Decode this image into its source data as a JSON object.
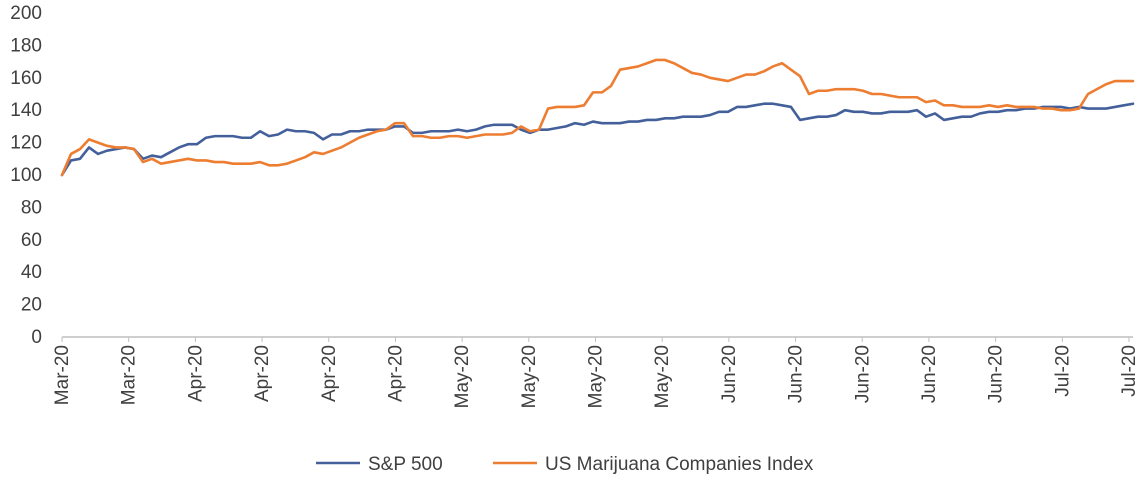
{
  "chart_data": {
    "type": "line",
    "title": "",
    "xlabel": "",
    "ylabel": "",
    "ylim": [
      0,
      200
    ],
    "y_ticks": [
      0,
      20,
      40,
      60,
      80,
      100,
      120,
      140,
      160,
      180,
      200
    ],
    "x_tick_labels": [
      "Mar-20",
      "Mar-20",
      "Apr-20",
      "Apr-20",
      "Apr-20",
      "Apr-20",
      "May-20",
      "May-20",
      "May-20",
      "May-20",
      "Jun-20",
      "Jun-20",
      "Jun-20",
      "Jun-20",
      "Jun-20",
      "Jul-20",
      "Jul-20"
    ],
    "grid": false,
    "legend_position": "bottom",
    "colors": {
      "sp500": "#44609a",
      "marijuana": "#ed7d31",
      "axis": "#bfbfbf",
      "text": "#404040"
    },
    "series": [
      {
        "name": "S&P 500",
        "color": "#44609a",
        "values": [
          [
            0,
            100
          ],
          [
            1,
            109
          ],
          [
            2,
            110
          ],
          [
            3,
            117
          ],
          [
            4,
            113
          ],
          [
            5,
            115
          ],
          [
            6,
            116
          ],
          [
            7,
            117
          ],
          [
            8,
            116
          ],
          [
            9,
            110
          ],
          [
            10,
            112
          ],
          [
            11,
            111
          ],
          [
            12,
            114
          ],
          [
            13,
            117
          ],
          [
            14,
            119
          ],
          [
            15,
            119
          ],
          [
            16,
            123
          ],
          [
            17,
            124
          ],
          [
            18,
            124
          ],
          [
            19,
            124
          ],
          [
            20,
            123
          ],
          [
            21,
            123
          ],
          [
            22,
            127
          ],
          [
            23,
            124
          ],
          [
            24,
            125
          ],
          [
            25,
            128
          ],
          [
            26,
            127
          ],
          [
            27,
            127
          ],
          [
            28,
            126
          ],
          [
            29,
            122
          ],
          [
            30,
            125
          ],
          [
            31,
            125
          ],
          [
            32,
            127
          ],
          [
            33,
            127
          ],
          [
            34,
            128
          ],
          [
            35,
            128
          ],
          [
            36,
            128
          ],
          [
            37,
            130
          ],
          [
            38,
            130
          ],
          [
            39,
            126
          ],
          [
            40,
            126
          ],
          [
            41,
            127
          ],
          [
            42,
            127
          ],
          [
            43,
            127
          ],
          [
            44,
            128
          ],
          [
            45,
            127
          ],
          [
            46,
            128
          ],
          [
            47,
            130
          ],
          [
            48,
            131
          ],
          [
            49,
            131
          ],
          [
            50,
            131
          ],
          [
            51,
            128
          ],
          [
            52,
            126
          ],
          [
            53,
            128
          ],
          [
            54,
            128
          ],
          [
            55,
            129
          ],
          [
            56,
            130
          ],
          [
            57,
            132
          ],
          [
            58,
            131
          ],
          [
            59,
            133
          ],
          [
            60,
            132
          ],
          [
            61,
            132
          ],
          [
            62,
            132
          ],
          [
            63,
            133
          ],
          [
            64,
            133
          ],
          [
            65,
            134
          ],
          [
            66,
            134
          ],
          [
            67,
            135
          ],
          [
            68,
            135
          ],
          [
            69,
            136
          ],
          [
            70,
            136
          ],
          [
            71,
            136
          ],
          [
            72,
            137
          ],
          [
            73,
            139
          ],
          [
            74,
            139
          ],
          [
            75,
            142
          ],
          [
            76,
            142
          ],
          [
            77,
            143
          ],
          [
            78,
            144
          ],
          [
            79,
            144
          ],
          [
            80,
            143
          ],
          [
            81,
            142
          ],
          [
            82,
            134
          ],
          [
            83,
            135
          ],
          [
            84,
            136
          ],
          [
            85,
            136
          ],
          [
            86,
            137
          ],
          [
            87,
            140
          ],
          [
            88,
            139
          ],
          [
            89,
            139
          ],
          [
            90,
            138
          ],
          [
            91,
            138
          ],
          [
            92,
            139
          ],
          [
            93,
            139
          ],
          [
            94,
            139
          ],
          [
            95,
            140
          ],
          [
            96,
            136
          ],
          [
            97,
            138
          ],
          [
            98,
            134
          ],
          [
            99,
            135
          ],
          [
            100,
            136
          ],
          [
            101,
            136
          ],
          [
            102,
            138
          ],
          [
            103,
            139
          ],
          [
            104,
            139
          ],
          [
            105,
            140
          ],
          [
            106,
            140
          ],
          [
            107,
            141
          ],
          [
            108,
            141
          ],
          [
            109,
            142
          ],
          [
            110,
            142
          ],
          [
            111,
            142
          ],
          [
            112,
            141
          ],
          [
            113,
            142
          ],
          [
            114,
            141
          ],
          [
            115,
            141
          ],
          [
            116,
            141
          ],
          [
            117,
            142
          ],
          [
            118,
            143
          ],
          [
            119,
            144
          ]
        ]
      },
      {
        "name": "US Marijuana Companies Index",
        "color": "#ed7d31",
        "values": [
          [
            0,
            100
          ],
          [
            1,
            113
          ],
          [
            2,
            116
          ],
          [
            3,
            122
          ],
          [
            4,
            120
          ],
          [
            5,
            118
          ],
          [
            6,
            117
          ],
          [
            7,
            117
          ],
          [
            8,
            116
          ],
          [
            9,
            108
          ],
          [
            10,
            110
          ],
          [
            11,
            107
          ],
          [
            12,
            108
          ],
          [
            13,
            109
          ],
          [
            14,
            110
          ],
          [
            15,
            109
          ],
          [
            16,
            109
          ],
          [
            17,
            108
          ],
          [
            18,
            108
          ],
          [
            19,
            107
          ],
          [
            20,
            107
          ],
          [
            21,
            107
          ],
          [
            22,
            108
          ],
          [
            23,
            106
          ],
          [
            24,
            106
          ],
          [
            25,
            107
          ],
          [
            26,
            109
          ],
          [
            27,
            111
          ],
          [
            28,
            114
          ],
          [
            29,
            113
          ],
          [
            30,
            115
          ],
          [
            31,
            117
          ],
          [
            32,
            120
          ],
          [
            33,
            123
          ],
          [
            34,
            125
          ],
          [
            35,
            127
          ],
          [
            36,
            128
          ],
          [
            37,
            132
          ],
          [
            38,
            132
          ],
          [
            39,
            124
          ],
          [
            40,
            124
          ],
          [
            41,
            123
          ],
          [
            42,
            123
          ],
          [
            43,
            124
          ],
          [
            44,
            124
          ],
          [
            45,
            123
          ],
          [
            46,
            124
          ],
          [
            47,
            125
          ],
          [
            48,
            125
          ],
          [
            49,
            125
          ],
          [
            50,
            126
          ],
          [
            51,
            130
          ],
          [
            52,
            127
          ],
          [
            53,
            128
          ],
          [
            54,
            141
          ],
          [
            55,
            142
          ],
          [
            56,
            142
          ],
          [
            57,
            142
          ],
          [
            58,
            143
          ],
          [
            59,
            151
          ],
          [
            60,
            151
          ],
          [
            61,
            155
          ],
          [
            62,
            165
          ],
          [
            63,
            166
          ],
          [
            64,
            167
          ],
          [
            65,
            169
          ],
          [
            66,
            171
          ],
          [
            67,
            171
          ],
          [
            68,
            169
          ],
          [
            69,
            166
          ],
          [
            70,
            163
          ],
          [
            71,
            162
          ],
          [
            72,
            160
          ],
          [
            73,
            159
          ],
          [
            74,
            158
          ],
          [
            75,
            160
          ],
          [
            76,
            162
          ],
          [
            77,
            162
          ],
          [
            78,
            164
          ],
          [
            79,
            167
          ],
          [
            80,
            169
          ],
          [
            81,
            165
          ],
          [
            82,
            161
          ],
          [
            83,
            150
          ],
          [
            84,
            152
          ],
          [
            85,
            152
          ],
          [
            86,
            153
          ],
          [
            87,
            153
          ],
          [
            88,
            153
          ],
          [
            89,
            152
          ],
          [
            90,
            150
          ],
          [
            91,
            150
          ],
          [
            92,
            149
          ],
          [
            93,
            148
          ],
          [
            94,
            148
          ],
          [
            95,
            148
          ],
          [
            96,
            145
          ],
          [
            97,
            146
          ],
          [
            98,
            143
          ],
          [
            99,
            143
          ],
          [
            100,
            142
          ],
          [
            101,
            142
          ],
          [
            102,
            142
          ],
          [
            103,
            143
          ],
          [
            104,
            142
          ],
          [
            105,
            143
          ],
          [
            106,
            142
          ],
          [
            107,
            142
          ],
          [
            108,
            142
          ],
          [
            109,
            141
          ],
          [
            110,
            141
          ],
          [
            111,
            140
          ],
          [
            112,
            140
          ],
          [
            113,
            141
          ],
          [
            114,
            150
          ],
          [
            115,
            153
          ],
          [
            116,
            156
          ],
          [
            117,
            158
          ],
          [
            118,
            158
          ],
          [
            119,
            158
          ]
        ]
      }
    ]
  }
}
